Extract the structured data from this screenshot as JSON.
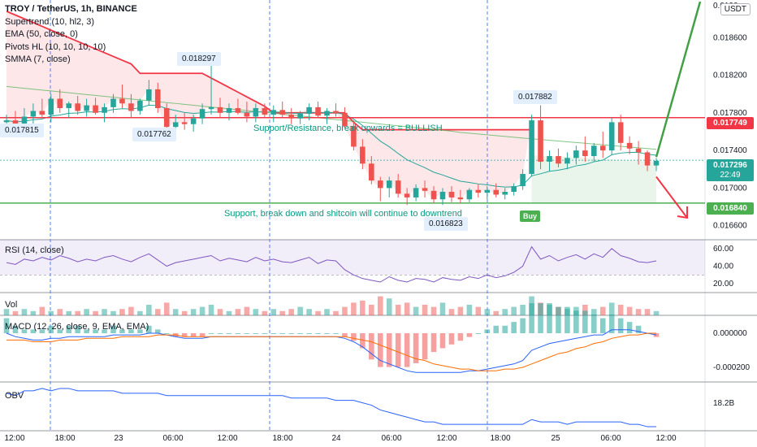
{
  "header": {
    "title": "TROY / TetherUS, 1h, BINANCE",
    "indicators": [
      "Supertrend (10, hl2, 3)",
      "EMA (50, close, 0)",
      "Pivots HL (10, 10, 10, 10)",
      "SMMA (7, close)"
    ],
    "currency": "USDT"
  },
  "panes": {
    "rsi_label": "RSI (14, close)",
    "vol_label": "Vol",
    "macd_label": "MACD (12, 26, close, 9, EMA, EMA)",
    "obv_label": "OBV"
  },
  "price_axis": {
    "ticks": [
      "0.018600",
      "0.018200",
      "0.017800",
      "0.017400",
      "0.017000",
      "0.016600"
    ],
    "top_partial": "0.0190"
  },
  "rsi_axis": {
    "ticks": [
      "60.00",
      "40.00",
      "20.00"
    ]
  },
  "macd_axis": {
    "ticks": [
      "0.000000",
      "-0.000200"
    ]
  },
  "obv_axis": {
    "ticks": [
      "18.2B"
    ]
  },
  "time_axis": {
    "ticks": [
      "12:00",
      "18:00",
      "23",
      "06:00",
      "12:00",
      "18:00",
      "24",
      "06:00",
      "12:00",
      "18:00",
      "25",
      "06:00",
      "12:00"
    ]
  },
  "price_tags": {
    "resistance": "0.017749",
    "current": "0.017296",
    "countdown": "22:49",
    "support": "0.016840"
  },
  "pivots": {
    "p1": "0.017815",
    "p2": "0.018297",
    "p3": "0.017762",
    "p4": "0.017882",
    "p5": "0.016823"
  },
  "annotations": {
    "resistance_text": "Support/Resistance, break upwards = BULLISH",
    "support_text": "Support, break down and shitcoin will continue to downtrend",
    "buy_label": "Buy"
  },
  "colors": {
    "up": "#26a69a",
    "down": "#ef5350",
    "supertrend_down": "#f23645",
    "resistance": "#f23645",
    "support": "#4caf50",
    "ema": "#26a69a",
    "rsi": "#7e57c2",
    "macd": "#2962ff",
    "signal": "#ff6d00",
    "obv": "#2962ff"
  },
  "chart_data": {
    "type": "candlestick",
    "symbol": "TROY/USDT",
    "interval": "1h",
    "ylim": [
      0.01645,
      0.019
    ],
    "resistance_level": 0.017749,
    "support_level": 0.01684,
    "candles": [
      [
        0.0177,
        0.01778,
        0.0176,
        0.01772
      ],
      [
        0.01772,
        0.01782,
        0.01755,
        0.0176
      ],
      [
        0.0176,
        0.01785,
        0.01758,
        0.01776
      ],
      [
        0.01776,
        0.0179,
        0.01768,
        0.01782
      ],
      [
        0.01782,
        0.01795,
        0.01775,
        0.01778
      ],
      [
        0.01778,
        0.018,
        0.0177,
        0.01795
      ],
      [
        0.01795,
        0.01805,
        0.0178,
        0.01785
      ],
      [
        0.01785,
        0.01792,
        0.01775,
        0.0179
      ],
      [
        0.0179,
        0.01798,
        0.01778,
        0.01782
      ],
      [
        0.01782,
        0.01795,
        0.01776,
        0.01788
      ],
      [
        0.01788,
        0.01796,
        0.01778,
        0.0178
      ],
      [
        0.0178,
        0.0179,
        0.0177,
        0.01786
      ],
      [
        0.01786,
        0.018,
        0.0178,
        0.01795
      ],
      [
        0.01795,
        0.0181,
        0.01785,
        0.0179
      ],
      [
        0.0179,
        0.018,
        0.01775,
        0.01782
      ],
      [
        0.01782,
        0.01795,
        0.01778,
        0.01793
      ],
      [
        0.01793,
        0.01815,
        0.01788,
        0.01805
      ],
      [
        0.01805,
        0.01812,
        0.0178,
        0.01785
      ],
      [
        0.01785,
        0.0179,
        0.0176,
        0.01765
      ],
      [
        0.01765,
        0.01778,
        0.01758,
        0.0177
      ],
      [
        0.0177,
        0.0178,
        0.01762,
        0.01768
      ],
      [
        0.01768,
        0.01778,
        0.0176,
        0.01774
      ],
      [
        0.01774,
        0.0179,
        0.01768,
        0.01784
      ],
      [
        0.01784,
        0.0183,
        0.01778,
        0.01786
      ],
      [
        0.01786,
        0.01796,
        0.01775,
        0.0178
      ],
      [
        0.0178,
        0.0179,
        0.01772,
        0.01785
      ],
      [
        0.01785,
        0.01795,
        0.01778,
        0.0178
      ],
      [
        0.0178,
        0.01792,
        0.0177,
        0.01776
      ],
      [
        0.01776,
        0.0179,
        0.0177,
        0.01785
      ],
      [
        0.01785,
        0.0179,
        0.01775,
        0.01778
      ],
      [
        0.01778,
        0.01788,
        0.0177,
        0.01783
      ],
      [
        0.01783,
        0.01792,
        0.01775,
        0.01778
      ],
      [
        0.01778,
        0.01785,
        0.01768,
        0.01774
      ],
      [
        0.01774,
        0.01782,
        0.01768,
        0.01779
      ],
      [
        0.01779,
        0.0179,
        0.01772,
        0.01786
      ],
      [
        0.01786,
        0.01792,
        0.01775,
        0.01777
      ],
      [
        0.01777,
        0.01785,
        0.01768,
        0.01782
      ],
      [
        0.01782,
        0.0179,
        0.01776,
        0.0178
      ],
      [
        0.0178,
        0.01786,
        0.01764,
        0.01766
      ],
      [
        0.01766,
        0.01772,
        0.0174,
        0.01744
      ],
      [
        0.01744,
        0.01752,
        0.0172,
        0.01726
      ],
      [
        0.01726,
        0.01734,
        0.01704,
        0.01708
      ],
      [
        0.01708,
        0.01712,
        0.01686,
        0.017
      ],
      [
        0.017,
        0.01712,
        0.0169,
        0.01708
      ],
      [
        0.01708,
        0.01715,
        0.0169,
        0.01694
      ],
      [
        0.01694,
        0.017,
        0.01682,
        0.0169
      ],
      [
        0.0169,
        0.01704,
        0.01686,
        0.017
      ],
      [
        0.017,
        0.01708,
        0.0169,
        0.01697
      ],
      [
        0.01697,
        0.01702,
        0.01684,
        0.01688
      ],
      [
        0.01688,
        0.017,
        0.01682,
        0.01696
      ],
      [
        0.01696,
        0.01702,
        0.01685,
        0.0169
      ],
      [
        0.0169,
        0.01698,
        0.01684,
        0.01688
      ],
      [
        0.01688,
        0.017,
        0.01685,
        0.01698
      ],
      [
        0.01698,
        0.01704,
        0.0169,
        0.01695
      ],
      [
        0.01695,
        0.01702,
        0.01688,
        0.01698
      ],
      [
        0.01698,
        0.01705,
        0.0169,
        0.01693
      ],
      [
        0.01693,
        0.017,
        0.01688,
        0.01696
      ],
      [
        0.01696,
        0.01705,
        0.01692,
        0.01702
      ],
      [
        0.01702,
        0.0172,
        0.01698,
        0.01715
      ],
      [
        0.01715,
        0.01778,
        0.01712,
        0.01772
      ],
      [
        0.01772,
        0.01788,
        0.0172,
        0.01728
      ],
      [
        0.01728,
        0.0174,
        0.01718,
        0.01734
      ],
      [
        0.01734,
        0.01742,
        0.01722,
        0.01726
      ],
      [
        0.01726,
        0.01738,
        0.0172,
        0.01732
      ],
      [
        0.01732,
        0.01745,
        0.01725,
        0.0174
      ],
      [
        0.0174,
        0.01755,
        0.01728,
        0.01734
      ],
      [
        0.01734,
        0.01748,
        0.01728,
        0.01745
      ],
      [
        0.01745,
        0.0176,
        0.01732,
        0.0174
      ],
      [
        0.0174,
        0.01775,
        0.01735,
        0.0177
      ],
      [
        0.0177,
        0.01778,
        0.0174,
        0.01748
      ],
      [
        0.01748,
        0.01755,
        0.01736,
        0.01742
      ],
      [
        0.01742,
        0.0175,
        0.01725,
        0.01738
      ],
      [
        0.01738,
        0.0174,
        0.01718,
        0.01724
      ],
      [
        0.01724,
        0.01732,
        0.01718,
        0.01729
      ]
    ],
    "rsi": [
      44,
      42,
      48,
      46,
      50,
      47,
      52,
      49,
      45,
      48,
      46,
      50,
      52,
      48,
      45,
      50,
      54,
      47,
      40,
      44,
      46,
      48,
      50,
      52,
      46,
      49,
      47,
      45,
      50,
      46,
      48,
      45,
      44,
      47,
      50,
      43,
      47,
      46,
      36,
      30,
      26,
      24,
      22,
      28,
      24,
      22,
      26,
      25,
      22,
      27,
      25,
      24,
      28,
      26,
      30,
      27,
      29,
      33,
      40,
      62,
      48,
      52,
      46,
      50,
      53,
      48,
      54,
      50,
      60,
      52,
      49,
      45,
      44,
      46
    ],
    "macd": [
      0.0,
      -2e-05,
      -3e-05,
      -4e-05,
      -4e-05,
      -3e-05,
      -3e-05,
      -2e-05,
      -2e-05,
      -2e-05,
      -2e-05,
      -2e-05,
      -1e-05,
      -1e-05,
      -1e-05,
      -1e-05,
      0.0,
      0.0,
      -1e-05,
      -2e-05,
      -3e-05,
      -3e-05,
      -3e-05,
      -2e-05,
      -2e-05,
      -2e-05,
      -2e-05,
      -2e-05,
      -2e-05,
      -2e-05,
      -2e-05,
      -2e-05,
      -2e-05,
      -2e-05,
      -2e-05,
      -2e-05,
      -2e-05,
      -2e-05,
      -3e-05,
      -5e-05,
      -8e-05,
      -0.00012,
      -0.00016,
      -0.00018,
      -0.0002,
      -0.00022,
      -0.00023,
      -0.00023,
      -0.00023,
      -0.00023,
      -0.00023,
      -0.00023,
      -0.00022,
      -0.00022,
      -0.00021,
      -0.0002,
      -0.00019,
      -0.00018,
      -0.00016,
      -0.0001,
      -8e-05,
      -6e-05,
      -5e-05,
      -4e-05,
      -3e-05,
      -2e-05,
      -1e-05,
      -1e-05,
      2e-05,
      2e-05,
      2e-05,
      1e-05,
      0.0,
      -1e-05
    ],
    "signal": [
      -4e-05,
      -4e-05,
      -4e-05,
      -5e-05,
      -5e-05,
      -5e-05,
      -4e-05,
      -4e-05,
      -4e-05,
      -3e-05,
      -3e-05,
      -3e-05,
      -3e-05,
      -2e-05,
      -2e-05,
      -2e-05,
      -2e-05,
      -1e-05,
      -1e-05,
      -1e-05,
      -2e-05,
      -2e-05,
      -2e-05,
      -2e-05,
      -2e-05,
      -2e-05,
      -2e-05,
      -2e-05,
      -2e-05,
      -2e-05,
      -2e-05,
      -2e-05,
      -2e-05,
      -2e-05,
      -2e-05,
      -2e-05,
      -2e-05,
      -2e-05,
      -2e-05,
      -3e-05,
      -4e-05,
      -5e-05,
      -7e-05,
      -9e-05,
      -0.00011,
      -0.00013,
      -0.00015,
      -0.00016,
      -0.00018,
      -0.00019,
      -0.0002,
      -0.00021,
      -0.00021,
      -0.00022,
      -0.00022,
      -0.00022,
      -0.00021,
      -0.00021,
      -0.0002,
      -0.00018,
      -0.00016,
      -0.00014,
      -0.00012,
      -0.00011,
      -9e-05,
      -8e-05,
      -6e-05,
      -5e-05,
      -3e-05,
      -2e-05,
      -1e-05,
      -1e-05,
      0.0,
      0.0
    ],
    "volume": [
      3,
      2,
      3,
      2,
      4,
      2,
      3,
      2,
      2,
      3,
      2,
      3,
      2,
      3,
      4,
      2,
      5,
      3,
      6,
      3,
      2,
      3,
      4,
      5,
      3,
      2,
      3,
      4,
      3,
      2,
      3,
      2,
      3,
      4,
      3,
      2,
      3,
      2,
      4,
      6,
      7,
      5,
      9,
      8,
      5,
      6,
      4,
      5,
      4,
      6,
      3,
      4,
      5,
      4,
      3,
      2,
      3,
      4,
      5,
      9,
      6,
      5,
      4,
      3,
      4,
      5,
      3,
      4,
      6,
      5,
      4,
      3,
      3,
      2
    ],
    "obv": [
      18.35,
      18.34,
      18.36,
      18.36,
      18.37,
      18.36,
      18.37,
      18.37,
      18.36,
      18.36,
      18.36,
      18.36,
      18.36,
      18.35,
      18.35,
      18.35,
      18.35,
      18.35,
      18.34,
      18.34,
      18.34,
      18.34,
      18.34,
      18.34,
      18.34,
      18.34,
      18.34,
      18.34,
      18.34,
      18.34,
      18.34,
      18.34,
      18.33,
      18.33,
      18.33,
      18.33,
      18.33,
      18.32,
      18.32,
      18.32,
      18.31,
      18.3,
      18.28,
      18.27,
      18.26,
      18.25,
      18.24,
      18.23,
      18.23,
      18.22,
      18.22,
      18.22,
      18.22,
      18.22,
      18.22,
      18.22,
      18.22,
      18.22,
      18.22,
      18.24,
      18.23,
      18.23,
      18.23,
      18.22,
      18.23,
      18.23,
      18.23,
      18.23,
      18.23,
      18.23,
      18.22,
      18.22,
      18.21,
      18.21
    ]
  }
}
